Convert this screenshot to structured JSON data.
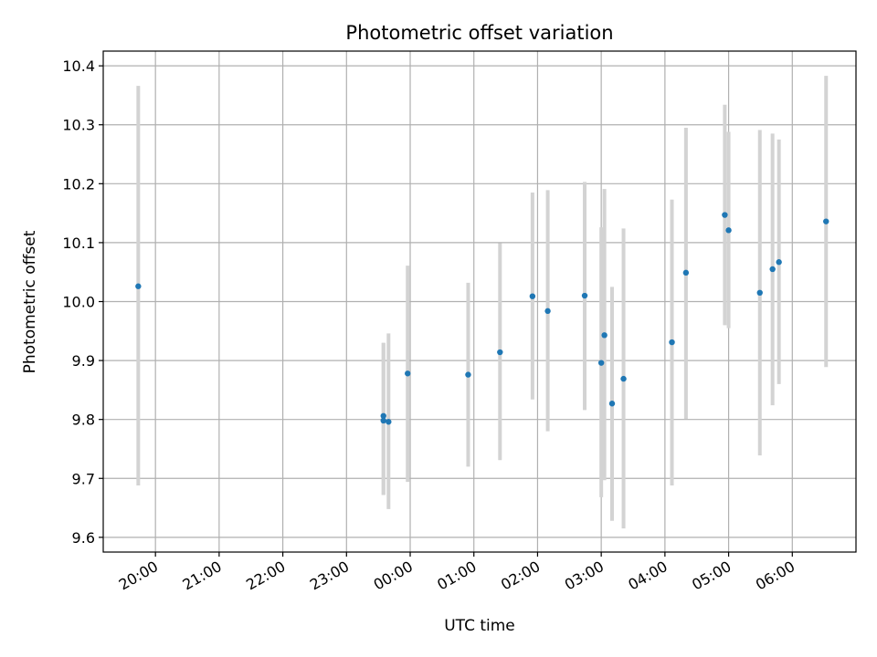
{
  "chart_data": {
    "type": "scatter",
    "title": "Photometric offset variation",
    "xlabel": "UTC time",
    "ylabel": "Photometric offset",
    "x_ticks": [
      "20:00",
      "21:00",
      "22:00",
      "23:00",
      "00:00",
      "01:00",
      "02:00",
      "03:00",
      "04:00",
      "05:00",
      "06:00"
    ],
    "x_tick_hours": [
      20,
      21,
      22,
      23,
      24,
      25,
      26,
      27,
      28,
      29,
      30
    ],
    "xlim_hours": [
      19.18,
      31.0
    ],
    "y_ticks": [
      "9.6",
      "9.7",
      "9.8",
      "9.9",
      "10.0",
      "10.1",
      "10.2",
      "10.3",
      "10.4"
    ],
    "y_tick_values": [
      9.6,
      9.7,
      9.8,
      9.9,
      10.0,
      10.1,
      10.2,
      10.3,
      10.4
    ],
    "ylim": [
      9.575,
      10.425
    ],
    "grid": true,
    "series": [
      {
        "marker_color": "#1f77b4",
        "errorbar_color": "#d3d3d3",
        "points": [
          {
            "time": "19:44",
            "hour": 19.73,
            "y": 10.026,
            "low": 9.688,
            "high": 10.366
          },
          {
            "time": "23:34",
            "hour": 23.58,
            "y": 9.806,
            "low": 9.672,
            "high": 9.93
          },
          {
            "time": "23:35",
            "hour": 23.58,
            "y": 9.798,
            "low": 9.672,
            "high": 9.93
          },
          {
            "time": "23:39",
            "hour": 23.66,
            "y": 9.796,
            "low": 9.648,
            "high": 9.946
          },
          {
            "time": "23:57",
            "hour": 23.96,
            "y": 9.878,
            "low": 9.694,
            "high": 10.061
          },
          {
            "time": "00:54",
            "hour": 24.91,
            "y": 9.876,
            "low": 9.72,
            "high": 10.032
          },
          {
            "time": "01:24",
            "hour": 25.41,
            "y": 9.914,
            "low": 9.731,
            "high": 10.099
          },
          {
            "time": "01:55",
            "hour": 25.92,
            "y": 10.009,
            "low": 9.834,
            "high": 10.185
          },
          {
            "time": "02:09",
            "hour": 26.16,
            "y": 9.984,
            "low": 9.78,
            "high": 10.189
          },
          {
            "time": "02:44",
            "hour": 26.74,
            "y": 10.01,
            "low": 9.816,
            "high": 10.203
          },
          {
            "time": "03:00",
            "hour": 27.0,
            "y": 9.896,
            "low": 9.668,
            "high": 10.126
          },
          {
            "time": "03:03",
            "hour": 27.05,
            "y": 9.943,
            "low": 9.697,
            "high": 10.191
          },
          {
            "time": "03:10",
            "hour": 27.17,
            "y": 9.827,
            "low": 9.628,
            "high": 10.025
          },
          {
            "time": "03:21",
            "hour": 27.35,
            "y": 9.869,
            "low": 9.615,
            "high": 10.124
          },
          {
            "time": "04:07",
            "hour": 28.11,
            "y": 9.931,
            "low": 9.688,
            "high": 10.173
          },
          {
            "time": "04:20",
            "hour": 28.33,
            "y": 10.049,
            "low": 9.801,
            "high": 10.295
          },
          {
            "time": "04:56",
            "hour": 28.94,
            "y": 10.147,
            "low": 9.96,
            "high": 10.334
          },
          {
            "time": "05:00",
            "hour": 29.0,
            "y": 10.121,
            "low": 9.955,
            "high": 10.288
          },
          {
            "time": "05:29",
            "hour": 29.49,
            "y": 10.015,
            "low": 9.739,
            "high": 10.291
          },
          {
            "time": "05:41",
            "hour": 29.69,
            "y": 10.055,
            "low": 9.824,
            "high": 10.285
          },
          {
            "time": "05:47",
            "hour": 29.79,
            "y": 10.067,
            "low": 9.86,
            "high": 10.275
          },
          {
            "time": "06:32",
            "hour": 30.53,
            "y": 10.136,
            "low": 9.889,
            "high": 10.383
          }
        ]
      }
    ]
  }
}
